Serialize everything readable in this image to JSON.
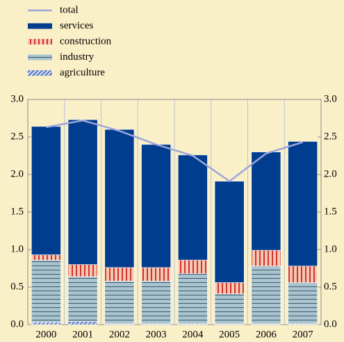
{
  "chart_data": {
    "type": "bar",
    "stacked": true,
    "categories": [
      "2000",
      "2001",
      "2002",
      "2003",
      "2004",
      "2005",
      "2006",
      "2007"
    ],
    "series": [
      {
        "name": "total",
        "type": "line",
        "color": "#9da6d9",
        "values": [
          2.63,
          2.72,
          2.58,
          2.4,
          2.25,
          1.91,
          2.28,
          2.43
        ]
      },
      {
        "name": "services",
        "type": "bar",
        "pattern": "solid",
        "color": "#003d8f",
        "values": [
          1.71,
          1.93,
          1.84,
          1.64,
          1.4,
          1.35,
          1.31,
          1.66
        ]
      },
      {
        "name": "construction",
        "type": "bar",
        "pattern": "vertical",
        "color": "#d0342c",
        "values": [
          0.07,
          0.16,
          0.18,
          0.18,
          0.18,
          0.15,
          0.21,
          0.22
        ]
      },
      {
        "name": "industry",
        "type": "bar",
        "pattern": "horizontal",
        "color": "#a9c4cf",
        "values": [
          0.83,
          0.6,
          0.57,
          0.57,
          0.67,
          0.4,
          0.77,
          0.55
        ]
      },
      {
        "name": "agriculture",
        "type": "bar",
        "pattern": "diagonal",
        "color": "#3b5fb0",
        "values": [
          0.03,
          0.04,
          0.01,
          0.01,
          0.01,
          0.01,
          0.01,
          0.01
        ]
      }
    ],
    "ylim": [
      0,
      3
    ],
    "yticks": [
      {
        "value": 0,
        "label": "0.0"
      },
      {
        "value": 0.5,
        "label": "0.5"
      },
      {
        "value": 1,
        "label": "1.0"
      },
      {
        "value": 1.5,
        "label": "1.5"
      },
      {
        "value": 2,
        "label": "2.0"
      },
      {
        "value": 2.5,
        "label": "2.5"
      },
      {
        "value": 3,
        "label": "3.0"
      }
    ],
    "y2lim": [
      0,
      3
    ],
    "y2ticks": [
      {
        "value": 0,
        "label": "0.0"
      },
      {
        "value": 0.5,
        "label": "0.5"
      },
      {
        "value": 1,
        "label": "1.0"
      },
      {
        "value": 1.5,
        "label": "1.5"
      },
      {
        "value": 2,
        "label": "2.0"
      },
      {
        "value": 2.5,
        "label": "2.5"
      },
      {
        "value": 3,
        "label": "3.0"
      }
    ],
    "legend": "top-left",
    "vgrid": true
  }
}
